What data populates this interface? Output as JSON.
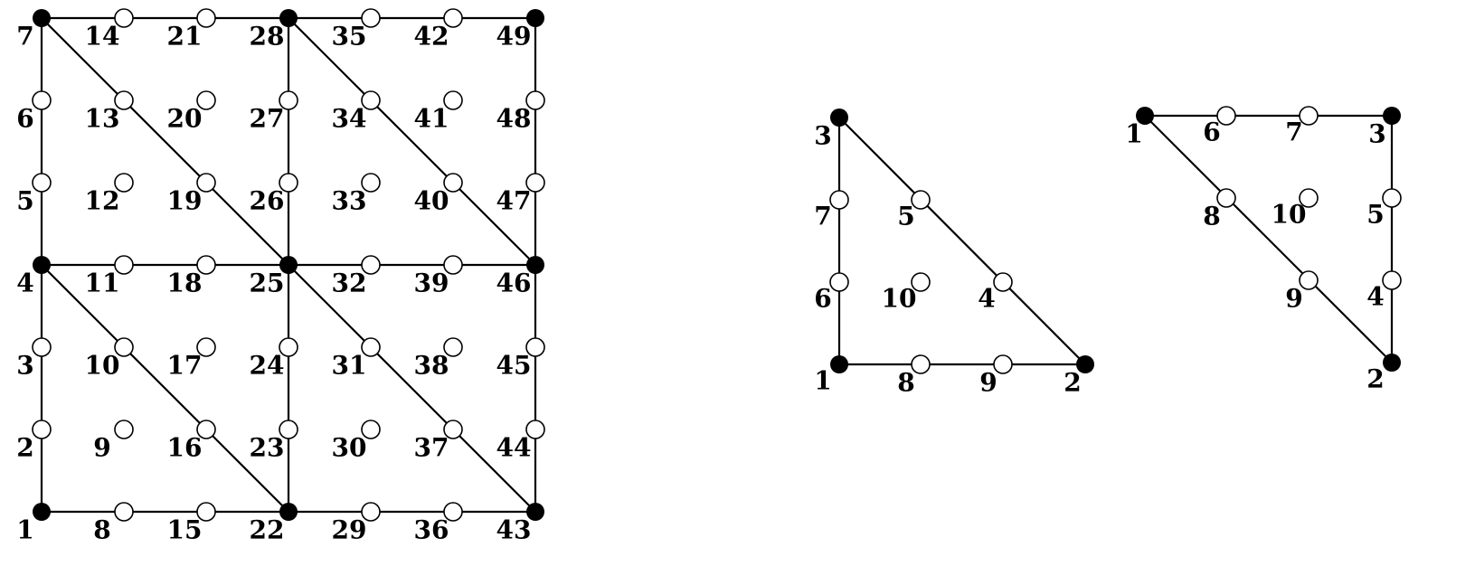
{
  "mesh": {
    "node_labels": [
      "1",
      "2",
      "3",
      "4",
      "5",
      "6",
      "7",
      "8",
      "9",
      "10",
      "11",
      "12",
      "13",
      "14",
      "15",
      "16",
      "17",
      "18",
      "19",
      "20",
      "21",
      "22",
      "23",
      "24",
      "25",
      "26",
      "27",
      "28",
      "29",
      "30",
      "31",
      "32",
      "33",
      "34",
      "35",
      "36",
      "37",
      "38",
      "39",
      "40",
      "41",
      "42",
      "43",
      "44",
      "45",
      "46",
      "47",
      "48",
      "49"
    ]
  },
  "triangle_a": {
    "node_labels": [
      "1",
      "2",
      "3",
      "4",
      "5",
      "6",
      "7",
      "8",
      "9",
      "10"
    ]
  },
  "triangle_b": {
    "node_labels": [
      "1",
      "2",
      "3",
      "4",
      "5",
      "6",
      "7",
      "8",
      "9",
      "10"
    ]
  }
}
